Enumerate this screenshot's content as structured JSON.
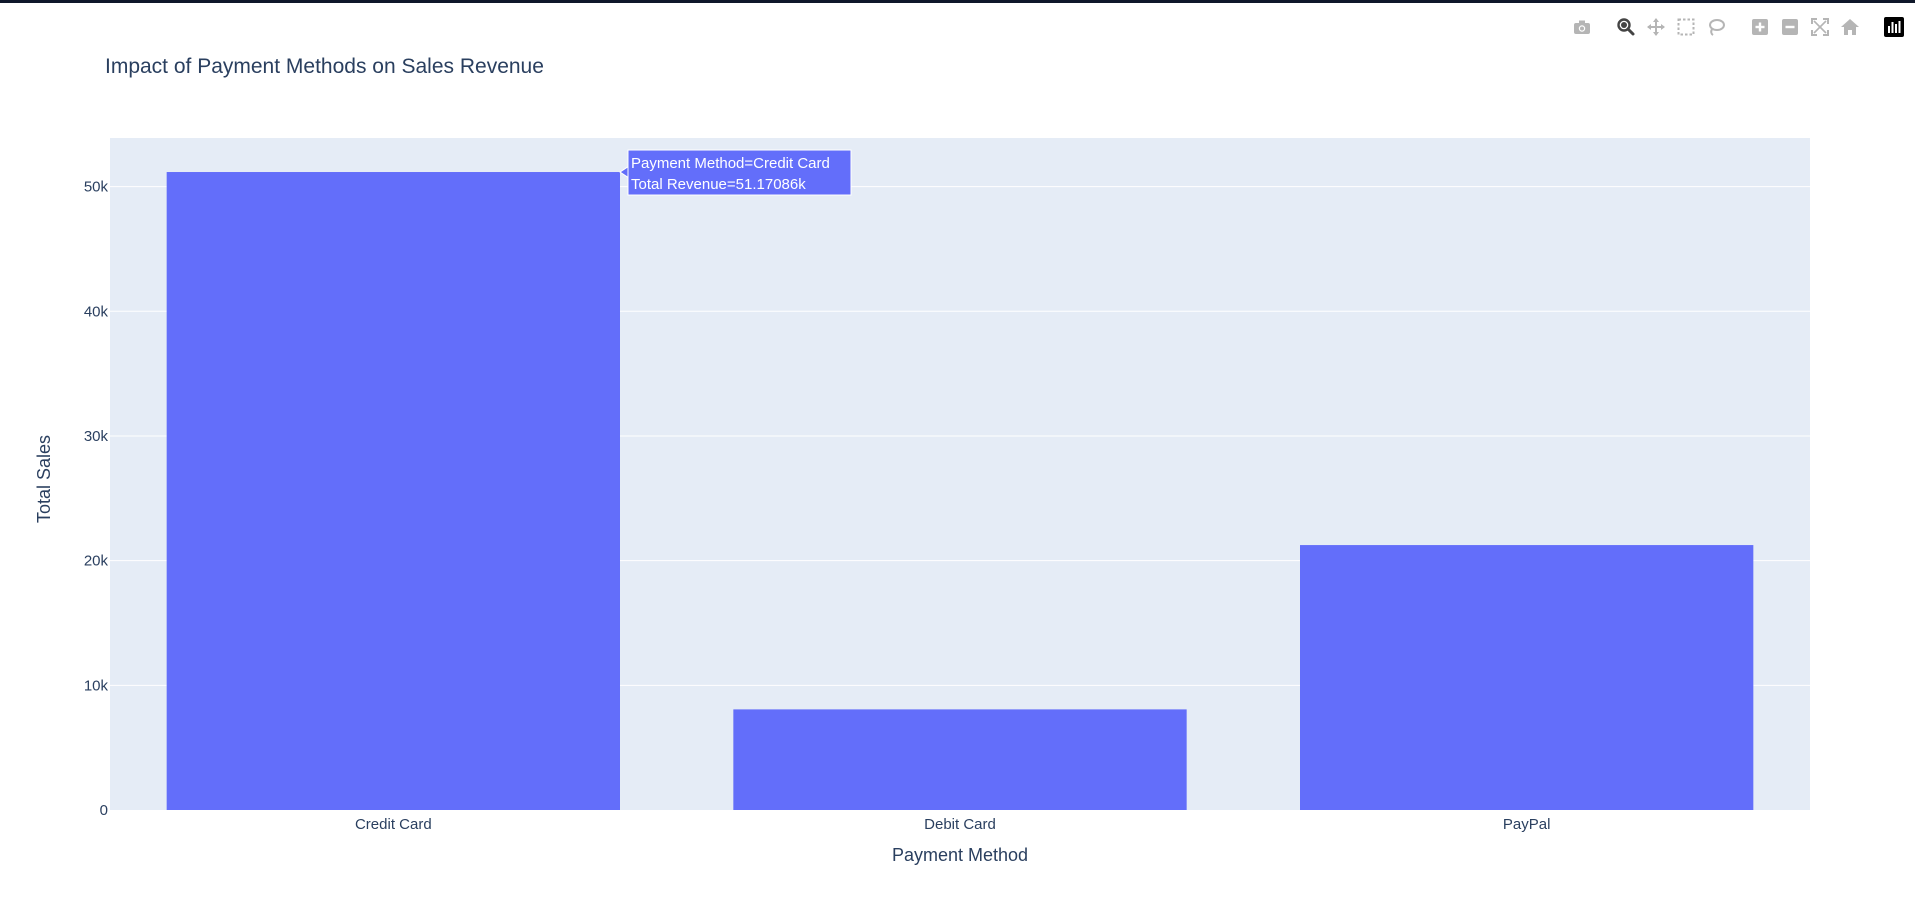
{
  "chart_data": {
    "type": "bar",
    "title": "Impact of Payment Methods on Sales Revenue",
    "xlabel": "Payment Method",
    "ylabel": "Total Sales",
    "categories": [
      "Credit Card",
      "Debit Card",
      "PayPal"
    ],
    "values": [
      51170.86,
      8070,
      21250
    ],
    "ylim": [
      0,
      53900
    ],
    "yticks": [
      0,
      10000,
      20000,
      30000,
      40000,
      50000
    ],
    "ytick_labels": [
      "0",
      "10k",
      "20k",
      "30k",
      "40k",
      "50k"
    ],
    "grid": true,
    "bar_color": "#636efa",
    "plot_bg": "#e5ecf6",
    "hover": {
      "category_index": 0,
      "line1": "Payment Method=Credit Card",
      "line2": "Total Revenue=51.17086k"
    }
  },
  "modebar": {
    "buttons": [
      "camera-icon",
      "zoom-icon",
      "pan-icon",
      "box-select-icon",
      "lasso-icon",
      "zoom-in-icon",
      "zoom-out-icon",
      "autoscale-icon",
      "reset-axes-icon",
      "plotly-logo-icon"
    ]
  }
}
